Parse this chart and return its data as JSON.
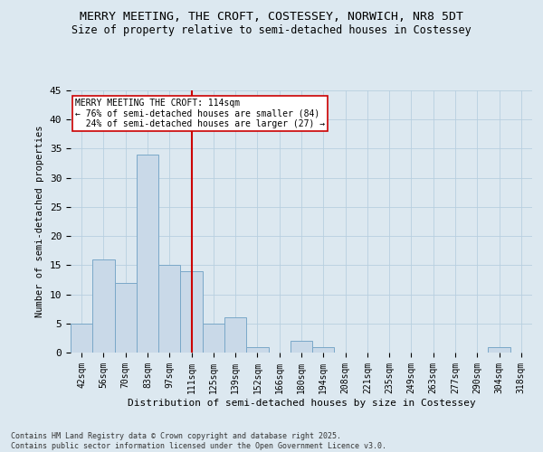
{
  "title": "MERRY MEETING, THE CROFT, COSTESSEY, NORWICH, NR8 5DT",
  "subtitle": "Size of property relative to semi-detached houses in Costessey",
  "xlabel": "Distribution of semi-detached houses by size in Costessey",
  "ylabel": "Number of semi-detached properties",
  "categories": [
    "42sqm",
    "56sqm",
    "70sqm",
    "83sqm",
    "97sqm",
    "111sqm",
    "125sqm",
    "139sqm",
    "152sqm",
    "166sqm",
    "180sqm",
    "194sqm",
    "208sqm",
    "221sqm",
    "235sqm",
    "249sqm",
    "263sqm",
    "277sqm",
    "290sqm",
    "304sqm",
    "318sqm"
  ],
  "values": [
    5,
    16,
    12,
    34,
    15,
    14,
    5,
    6,
    1,
    0,
    2,
    1,
    0,
    0,
    0,
    0,
    0,
    0,
    0,
    1,
    0
  ],
  "bar_color": "#c9d9e8",
  "bar_edge_color": "#7aa8c8",
  "grid_color": "#b8cfe0",
  "background_color": "#dce8f0",
  "vline_x_index": 5,
  "vline_color": "#cc0000",
  "annotation_text": "MERRY MEETING THE CROFT: 114sqm\n← 76% of semi-detached houses are smaller (84)\n  24% of semi-detached houses are larger (27) →",
  "annotation_box_color": "white",
  "annotation_box_edge": "#cc0000",
  "ylim": [
    0,
    45
  ],
  "yticks": [
    0,
    5,
    10,
    15,
    20,
    25,
    30,
    35,
    40,
    45
  ],
  "footer_line1": "Contains HM Land Registry data © Crown copyright and database right 2025.",
  "footer_line2": "Contains public sector information licensed under the Open Government Licence v3.0."
}
